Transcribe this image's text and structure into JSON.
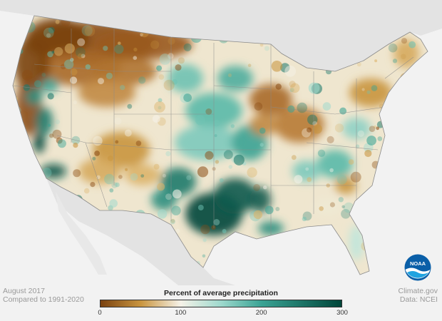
{
  "caption": {
    "date": "August 2017",
    "baseline": "Compared to 1991-2020",
    "credit": "Climate.gov",
    "source": "Data: NCEI"
  },
  "legend": {
    "title": "Percent of average precipitation",
    "ticks": [
      "0",
      "100",
      "200",
      "300"
    ],
    "tick_values": [
      0,
      100,
      200,
      300
    ],
    "range": [
      0,
      300
    ],
    "colors": {
      "0": "#7a4210",
      "50": "#c9953f",
      "100": "#f5f2e8",
      "150": "#9ed9cd",
      "200": "#3aa394",
      "300": "#00463a"
    }
  },
  "logo": {
    "text": "NOAA",
    "color": "#0a5fa8"
  },
  "colors": {
    "land_background": "#e3e3e3",
    "ocean": "#f2f2f2",
    "state_border": "#9a9a9a"
  }
}
